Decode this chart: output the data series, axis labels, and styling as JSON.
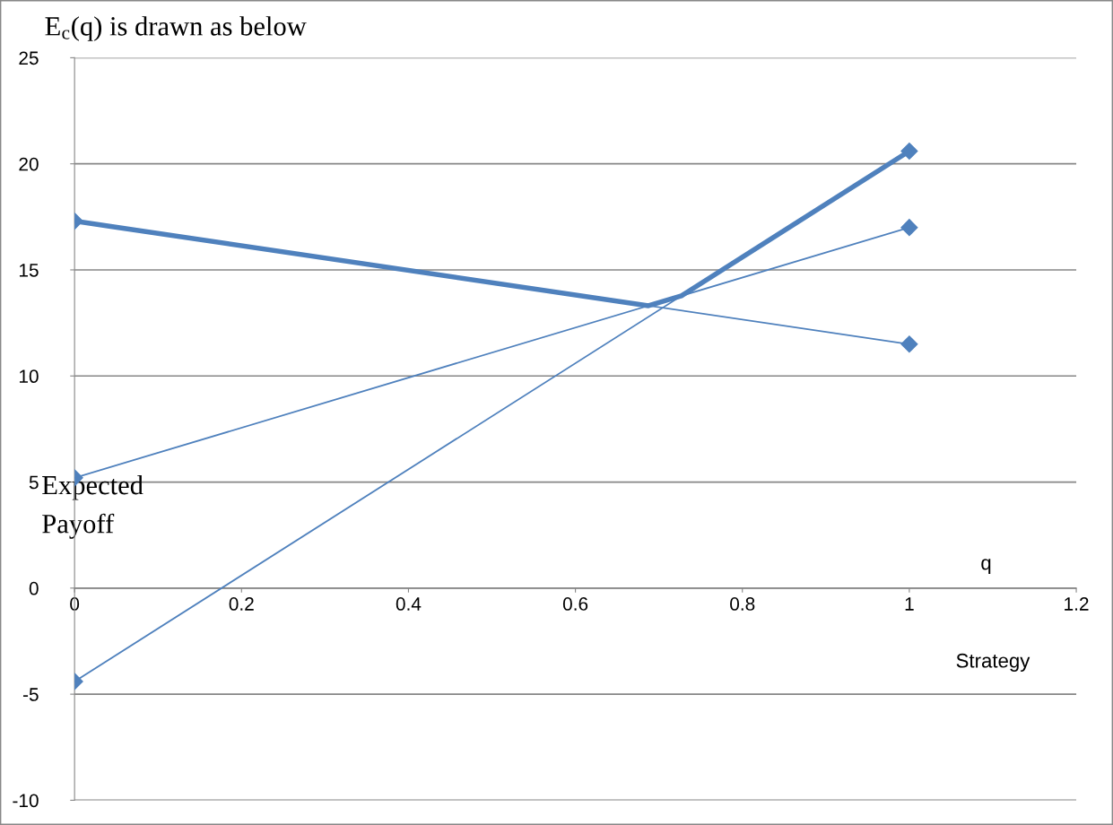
{
  "chart_data": {
    "type": "line",
    "title": "E$_{c}$(q) is drawn as below",
    "xlabel": "q",
    "ylabel": "Expected\nPayoff",
    "annotations": [
      "Strategy"
    ],
    "xlim": [
      0,
      1.2
    ],
    "xticks": [
      0,
      0.2,
      0.4,
      0.6,
      0.8,
      1,
      1.2
    ],
    "ylim": [
      -10,
      25
    ],
    "yticks": [
      -10,
      -5,
      0,
      5,
      10,
      15,
      20,
      25
    ],
    "grid": "y",
    "marker": "diamond",
    "line_style": "solid",
    "series": [
      {
        "color": "#4f81bd",
        "x": [
          0,
          1
        ],
        "values": [
          17.3,
          11.5
        ]
      },
      {
        "color": "#4f81bd",
        "x": [
          0,
          1
        ],
        "values": [
          5.2,
          17
        ]
      },
      {
        "color": "#4f81bd",
        "x": [
          0,
          1
        ],
        "values": [
          -4.4,
          20.6
        ]
      },
      {
        "color": "#4f81bd",
        "x": [
          0,
          0.6875,
          0.727,
          1
        ],
        "values": [
          17.3,
          13.31,
          13.78,
          20.6
        ],
        "marker": "none"
      }
    ]
  }
}
